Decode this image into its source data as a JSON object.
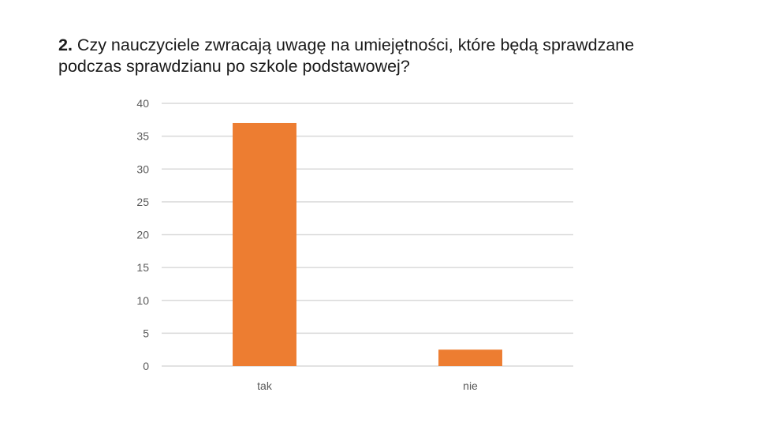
{
  "slide": {
    "question_number": "2.",
    "question_text": "Czy nauczyciele zwracają uwagę na umiejętności, które będą sprawdzane podczas sprawdzianu po szkole podstawowej?"
  },
  "chart_data": {
    "type": "bar",
    "title": "",
    "xlabel": "",
    "ylabel": "",
    "categories": [
      "tak",
      "nie"
    ],
    "values": [
      37,
      2.5
    ],
    "ylim": [
      0,
      40
    ],
    "yticks": [
      0,
      5,
      10,
      15,
      20,
      25,
      30,
      35,
      40
    ],
    "grid": true,
    "legend": "none",
    "bar_color": "#ED7D31",
    "grid_color": "#D9D9D9"
  }
}
